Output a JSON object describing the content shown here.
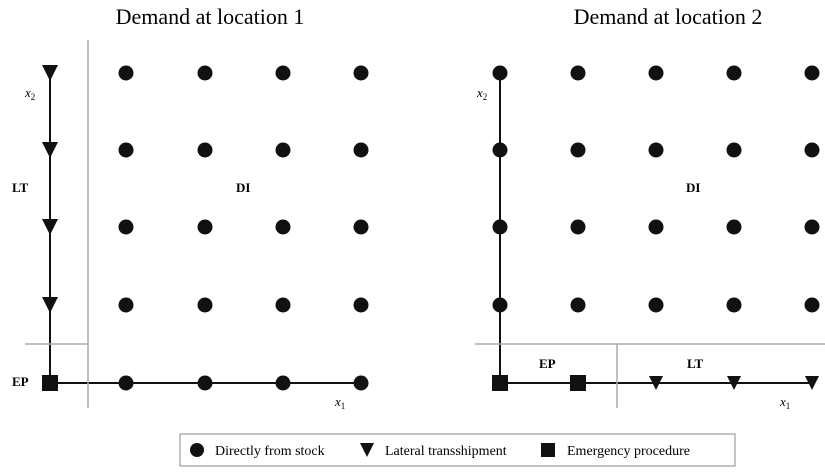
{
  "panels": [
    {
      "title": "Demand at location 1",
      "y_axis": {
        "symbol": "x",
        "sub": "2"
      },
      "x_axis": {
        "symbol": "x",
        "sub": "1"
      },
      "regions": [
        "LT",
        "DI",
        "EP"
      ]
    },
    {
      "title": "Demand at location 2",
      "y_axis": {
        "symbol": "x",
        "sub": "2"
      },
      "x_axis": {
        "symbol": "x",
        "sub": "1"
      },
      "regions": [
        "DI",
        "EP",
        "LT"
      ]
    }
  ],
  "legend": [
    "Directly from stock",
    "Lateral transshipment",
    "Emergency procedure"
  ]
}
